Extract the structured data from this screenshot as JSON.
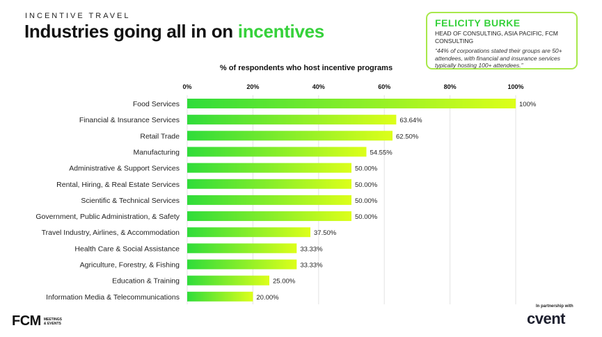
{
  "header": {
    "eyebrow": "INCENTIVE TRAVEL",
    "title_main": "Industries going all in on ",
    "title_accent": "incentives"
  },
  "quote": {
    "name": "FELICITY BURKE",
    "role": "HEAD OF CONSULTING, ASIA PACIFIC, FCM CONSULTING",
    "text": "“44% of corporations stated their groups are 50+ attendees, with financial and insurance services typically hosting 100+ attendees.”"
  },
  "footer": {
    "partner_label": "In partnership with",
    "fcm_logo": "FCM",
    "fcm_sub_line1": "MEETINGS",
    "fcm_sub_line2": "& EVENTS",
    "cvent_logo": "cvent"
  },
  "colors": {
    "accent_green": "#36d13b",
    "bar_start": "#2fdc3a",
    "bar_end": "#ddff1a",
    "card_border": "#a8e84a"
  },
  "chart_data": {
    "type": "bar",
    "orientation": "horizontal",
    "title": "% of respondents who host incentive programs",
    "xlabel": "",
    "ylabel": "",
    "xlim": [
      0,
      100
    ],
    "x_ticks": [
      "0%",
      "20%",
      "40%",
      "60%",
      "80%",
      "100%"
    ],
    "grid": true,
    "categories": [
      "Food Services",
      "Financial & Insurance Services",
      "Retail Trade",
      "Manufacturing",
      "Administrative & Support Services",
      "Rental, Hiring, & Real Estate Services",
      "Scientific & Technical Services",
      "Government, Public Administration, & Safety",
      "Travel Industry, Airlines, & Accommodation",
      "Health Care & Social Assistance",
      "Agriculture, Forestry, & Fishing",
      "Education & Training",
      "Information Media & Telecommunications"
    ],
    "values": [
      100,
      63.64,
      62.5,
      54.55,
      50,
      50,
      50,
      50,
      37.5,
      33.33,
      33.33,
      25,
      20
    ],
    "data_labels": [
      "100%",
      "63.64%",
      "62.50%",
      "54.55%",
      "50.00%",
      "50.00%",
      "50.00%",
      "50.00%",
      "37.50%",
      "33.33%",
      "33.33%",
      "25.00%",
      "20.00%"
    ]
  }
}
